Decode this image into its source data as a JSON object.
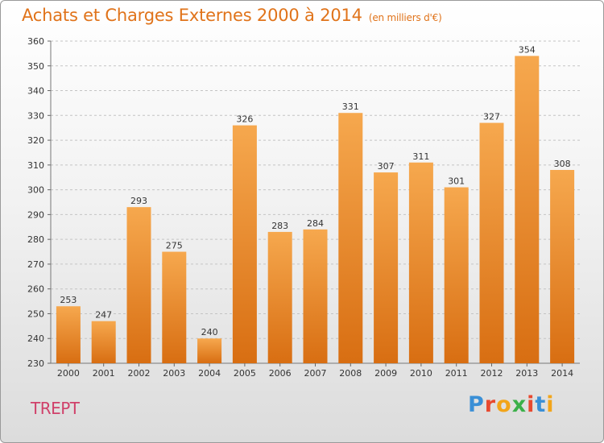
{
  "header": {
    "title": "Achats et Charges Externes 2000 à 2014",
    "subtitle": "(en milliers d'€)"
  },
  "footer": {
    "commune": "TREPT",
    "logo": "Proxiti"
  },
  "colors": {
    "bar_top": "#f6a84e",
    "bar_bottom": "#d86e12",
    "title": "#e0731a",
    "commune": "#d0416a",
    "grid": "#c4c4c4"
  },
  "chart_data": {
    "type": "bar",
    "categories": [
      "2000",
      "2001",
      "2002",
      "2003",
      "2004",
      "2005",
      "2006",
      "2007",
      "2008",
      "2009",
      "2010",
      "2011",
      "2012",
      "2013",
      "2014"
    ],
    "values": [
      253,
      247,
      293,
      275,
      240,
      326,
      283,
      284,
      331,
      307,
      311,
      301,
      327,
      354,
      308
    ],
    "title": "Achats et Charges Externes 2000 à 2014",
    "subtitle": "(en milliers d'€)",
    "ylim": [
      230,
      360
    ],
    "yticks": [
      230,
      240,
      250,
      260,
      270,
      280,
      290,
      300,
      310,
      320,
      330,
      340,
      350,
      360
    ],
    "grid": "horizontal dashed",
    "legend": "none"
  }
}
